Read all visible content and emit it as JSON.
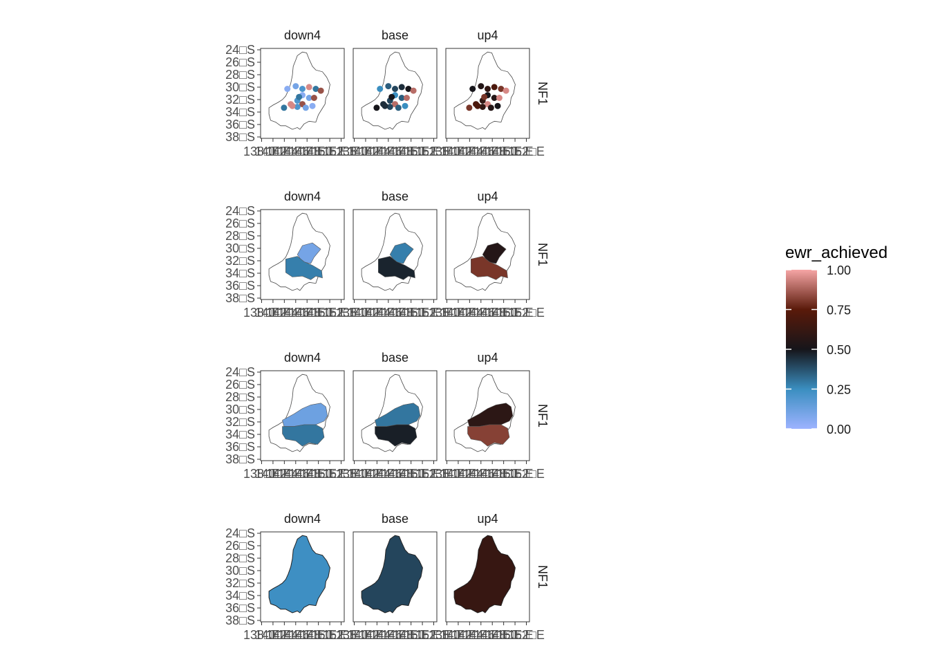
{
  "chart_data": {
    "type": "map",
    "row_strip_label": "NF1",
    "facet_columns": [
      "down4",
      "base",
      "up4"
    ],
    "y_tick_labels": [
      "24□S",
      "26□S",
      "28□S",
      "30□S",
      "32□S",
      "34□S",
      "36□S",
      "38□S"
    ],
    "x_tick_labels": [
      "138□E",
      "140□E",
      "142□E",
      "144□E",
      "146□E",
      "148□E",
      "150□E",
      "152□E"
    ],
    "lat_range": [
      -38,
      -24
    ],
    "lon_range": [
      138,
      152
    ],
    "legend": {
      "title": "ewr_achieved",
      "ticks": [
        "0.00",
        "0.25",
        "0.50",
        "0.75",
        "1.00"
      ],
      "tick_values": [
        0,
        0.25,
        0.5,
        0.75,
        1.0
      ],
      "colors": [
        "#9db3ff",
        "#3a8ec0",
        "#16151a",
        "#5a1a0a",
        "#f6a5a5"
      ]
    },
    "panels": [
      {
        "row": 1,
        "kind": "points",
        "values": {
          "down4": [
            0.05,
            0.1,
            0.2,
            0.95,
            0.3,
            0.85
          ],
          "base": [
            0.25,
            0.35,
            0.4,
            0.45,
            0.5,
            0.9
          ],
          "up4": [
            0.5,
            0.55,
            0.6,
            0.7,
            0.8,
            0.95
          ]
        }
      },
      {
        "row": 2,
        "kind": "regions",
        "values": {
          "down4": [
            0.1,
            0.28
          ],
          "base": [
            0.28,
            0.47
          ],
          "up4": [
            0.55,
            0.8
          ]
        }
      },
      {
        "row": 3,
        "kind": "regions",
        "values": {
          "down4": [
            0.12,
            0.3
          ],
          "base": [
            0.3,
            0.48
          ],
          "up4": [
            0.58,
            0.82
          ]
        }
      },
      {
        "row": 4,
        "kind": "basin",
        "values": {
          "down4": [
            0.24
          ],
          "base": [
            0.4
          ],
          "up4": [
            0.62
          ]
        }
      }
    ]
  }
}
